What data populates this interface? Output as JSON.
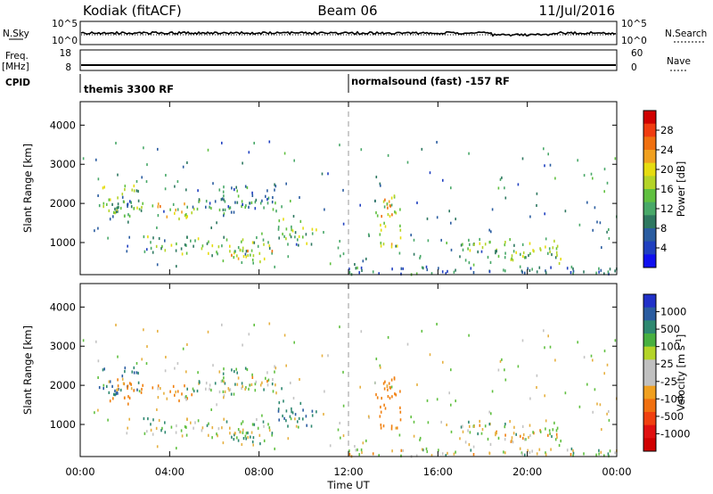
{
  "header": {
    "radar": "Kodiak (fitACF)",
    "beam": "Beam 06",
    "date": "11/Jul/2016"
  },
  "panels": {
    "nsky": {
      "label": "N.Sky",
      "right_label": "N.Search",
      "yticks_left": [
        "10^5",
        "10^0"
      ],
      "yticks_right": [
        "10^5",
        "10^0"
      ]
    },
    "freq": {
      "label": "Freq.",
      "unit": "[MHz]",
      "right_label": "Nave",
      "yticks_left": [
        "18",
        "8"
      ],
      "yticks_right": [
        "60",
        "0"
      ]
    },
    "cpid": {
      "label": "CPID",
      "modes": [
        {
          "name": "themis 3300 RF",
          "start": 0
        },
        {
          "name": "normalsound (fast) -157 RF",
          "start": 12
        }
      ]
    }
  },
  "colorbars": {
    "power": {
      "label": "Power [dB]",
      "ticks": [
        "28",
        "24",
        "20",
        "16",
        "12",
        "8",
        "4"
      ],
      "colors": [
        "#d00000",
        "#f03c10",
        "#f07010",
        "#f0a020",
        "#e6dc10",
        "#b4d428",
        "#60c040",
        "#48a868",
        "#2e7860",
        "#2a5ca0",
        "#2040c0",
        "#1010f0"
      ]
    },
    "velocity": {
      "label": "Velocity [m s",
      "label_sup": "-1",
      "label_end": "]",
      "ticks": [
        "1000",
        "500",
        "100",
        "25",
        "-25",
        "-100",
        "-500",
        "-1000"
      ],
      "colors": [
        "#2030c8",
        "#2a5ca0",
        "#2e8870",
        "#48b040",
        "#b4d428",
        "#c0c0c0",
        "#c0c0c0",
        "#f0a020",
        "#f07010",
        "#f04010",
        "#e01010",
        "#d00000"
      ]
    }
  },
  "chart_data": {
    "type": "heatmap",
    "xlabel": "Time UT",
    "xticks": [
      "00:00",
      "04:00",
      "08:00",
      "12:00",
      "16:00",
      "20:00",
      "00:00"
    ],
    "xlim_hours": [
      0,
      24
    ],
    "ylabel": "Slant Range [km]",
    "yticks": [
      1000,
      2000,
      3000,
      4000
    ],
    "ylim_km": [
      180,
      4600
    ],
    "mode_change_hour": 12,
    "backscatter_regions": [
      {
        "t0": 0.8,
        "t1": 2.6,
        "r0": 1750,
        "r1": 2450,
        "power": 14,
        "velocity": 300
      },
      {
        "t0": 1.2,
        "t1": 2.8,
        "r0": 1500,
        "r1": 2200,
        "power": 10,
        "velocity": -150
      },
      {
        "t0": 3.0,
        "t1": 5.0,
        "r0": 1600,
        "r1": 2000,
        "power": 17,
        "velocity": -120
      },
      {
        "t0": 4.6,
        "t1": 7.2,
        "r0": 1700,
        "r1": 2100,
        "power": 9,
        "velocity": 80
      },
      {
        "t0": 6.0,
        "t1": 9.0,
        "r0": 1800,
        "r1": 2500,
        "power": 8,
        "velocity": 10
      },
      {
        "t0": 2.8,
        "t1": 8.6,
        "r0": 650,
        "r1": 1150,
        "power": 13,
        "velocity": 30
      },
      {
        "t0": 6.6,
        "t1": 8.6,
        "r0": 500,
        "r1": 800,
        "power": 18,
        "velocity": 150
      },
      {
        "t0": 8.8,
        "t1": 10.6,
        "r0": 950,
        "r1": 1600,
        "power": 13,
        "velocity": 250
      },
      {
        "t0": 13.2,
        "t1": 14.3,
        "r0": 800,
        "r1": 2200,
        "power": 18,
        "velocity": -350
      },
      {
        "t0": 17.0,
        "t1": 21.5,
        "r0": 450,
        "r1": 1100,
        "power": 13,
        "velocity": 0
      },
      {
        "t0": 12.0,
        "t1": 24.0,
        "r0": 180,
        "r1": 400,
        "power": 6,
        "velocity": 15
      }
    ]
  }
}
